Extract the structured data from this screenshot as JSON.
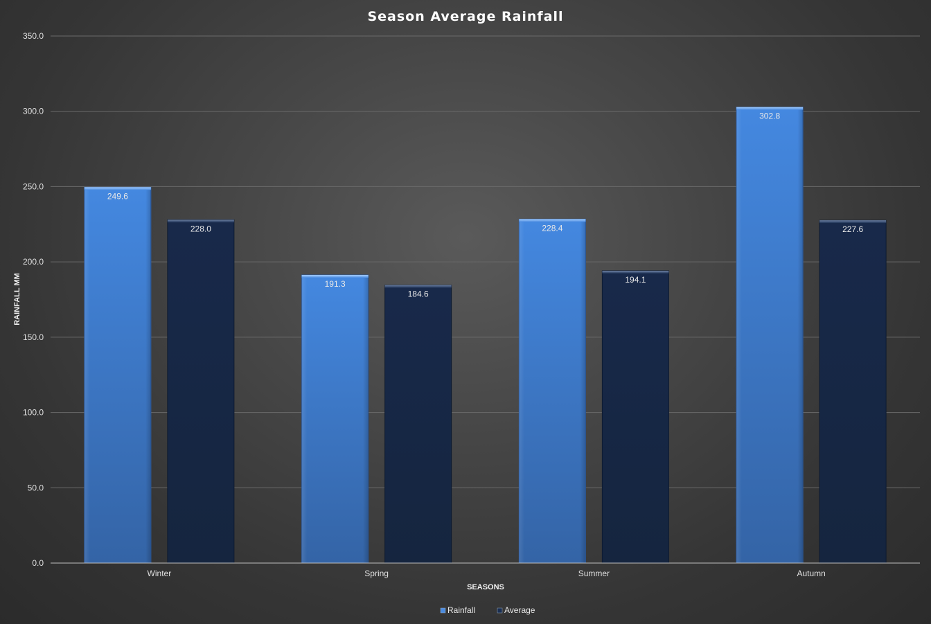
{
  "chart_data": {
    "type": "bar",
    "title": "Season Average Rainfall",
    "xlabel": "SEASONS",
    "ylabel": "RAINFALL MM",
    "categories": [
      "Winter",
      "Spring",
      "Summer",
      "Autumn"
    ],
    "series": [
      {
        "name": "Rainfall",
        "values": [
          249.6,
          191.3,
          228.4,
          302.8
        ],
        "labels": [
          "249.6",
          "191.3",
          "228.4",
          "302.8"
        ],
        "color": "#3f7fd2"
      },
      {
        "name": "Average",
        "values": [
          228.0,
          184.6,
          194.1,
          227.6
        ],
        "labels": [
          "228.0",
          "184.6",
          "194.1",
          "227.6"
        ],
        "color": "#172a48"
      }
    ],
    "ylim": [
      0,
      350
    ],
    "yticks": [
      "0.0",
      "50.0",
      "100.0",
      "150.0",
      "200.0",
      "250.0",
      "300.0",
      "350.0"
    ],
    "grid": true,
    "legend_position": "bottom"
  }
}
